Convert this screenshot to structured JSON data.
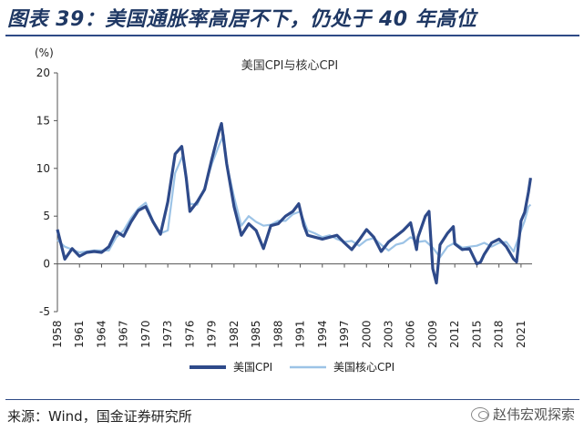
{
  "figure_title": "图表 39：美国通胀率高居不下，仍处于 40 年高位",
  "source": "来源：Wind，国金证券研究所",
  "watermark": "赵伟宏观探索",
  "chart_data": {
    "type": "line",
    "title": "美国CPI与核心CPI",
    "ylabel": "(%)",
    "xlabel": "",
    "ylim": [
      -5,
      20
    ],
    "yticks": [
      -5,
      0,
      5,
      10,
      15,
      20
    ],
    "xlim": [
      1958,
      2022.5
    ],
    "xticks": [
      1958,
      1961,
      1964,
      1967,
      1970,
      1973,
      1976,
      1979,
      1982,
      1985,
      1988,
      1991,
      1994,
      1997,
      2000,
      2003,
      2006,
      2009,
      2012,
      2015,
      2018,
      2021
    ],
    "legend_position": "bottom",
    "grid": false,
    "series": [
      {
        "name": "美国CPI",
        "color": "#2e4a8a",
        "points": [
          [
            1958,
            3.6
          ],
          [
            1959,
            0.5
          ],
          [
            1960,
            1.6
          ],
          [
            1961,
            0.8
          ],
          [
            1962,
            1.2
          ],
          [
            1963,
            1.3
          ],
          [
            1964,
            1.2
          ],
          [
            1965,
            1.8
          ],
          [
            1966,
            3.4
          ],
          [
            1967,
            2.9
          ],
          [
            1968,
            4.4
          ],
          [
            1969,
            5.6
          ],
          [
            1970,
            6.0
          ],
          [
            1971,
            4.4
          ],
          [
            1972,
            3.1
          ],
          [
            1973,
            6.5
          ],
          [
            1974,
            11.5
          ],
          [
            1974.9,
            12.3
          ],
          [
            1975.5,
            9.0
          ],
          [
            1976,
            5.5
          ],
          [
            1977,
            6.5
          ],
          [
            1978,
            7.8
          ],
          [
            1979,
            11.0
          ],
          [
            1980,
            14.0
          ],
          [
            1980.3,
            14.7
          ],
          [
            1981,
            10.5
          ],
          [
            1982,
            6.0
          ],
          [
            1983,
            3.0
          ],
          [
            1984,
            4.2
          ],
          [
            1985,
            3.5
          ],
          [
            1986,
            1.6
          ],
          [
            1987,
            4.0
          ],
          [
            1988,
            4.2
          ],
          [
            1989,
            5.0
          ],
          [
            1990,
            5.5
          ],
          [
            1990.8,
            6.3
          ],
          [
            1991.5,
            4.0
          ],
          [
            1992,
            3.0
          ],
          [
            1993,
            2.8
          ],
          [
            1994,
            2.6
          ],
          [
            1995,
            2.8
          ],
          [
            1996,
            3.0
          ],
          [
            1997,
            2.2
          ],
          [
            1998,
            1.5
          ],
          [
            1999,
            2.5
          ],
          [
            2000,
            3.6
          ],
          [
            2001,
            2.8
          ],
          [
            2002,
            1.3
          ],
          [
            2003,
            2.3
          ],
          [
            2004,
            2.9
          ],
          [
            2005,
            3.5
          ],
          [
            2006,
            4.3
          ],
          [
            2006.8,
            1.5
          ],
          [
            2007,
            2.8
          ],
          [
            2008,
            5.0
          ],
          [
            2008.5,
            5.5
          ],
          [
            2009,
            -0.5
          ],
          [
            2009.5,
            -2.0
          ],
          [
            2010,
            2.0
          ],
          [
            2011,
            3.2
          ],
          [
            2011.8,
            3.9
          ],
          [
            2012,
            2.1
          ],
          [
            2013,
            1.5
          ],
          [
            2014,
            1.6
          ],
          [
            2015,
            0.0
          ],
          [
            2015.5,
            0.2
          ],
          [
            2016,
            1.0
          ],
          [
            2017,
            2.2
          ],
          [
            2018,
            2.6
          ],
          [
            2019,
            1.8
          ],
          [
            2020,
            0.5
          ],
          [
            2020.4,
            0.2
          ],
          [
            2021,
            4.5
          ],
          [
            2021.5,
            5.4
          ],
          [
            2022,
            7.5
          ],
          [
            2022.3,
            9.0
          ]
        ]
      },
      {
        "name": "美国核心CPI",
        "color": "#9cc3e6",
        "points": [
          [
            1958,
            2.5
          ],
          [
            1959,
            1.8
          ],
          [
            1960,
            1.5
          ],
          [
            1961,
            1.2
          ],
          [
            1962,
            1.3
          ],
          [
            1963,
            1.4
          ],
          [
            1964,
            1.4
          ],
          [
            1965,
            1.4
          ],
          [
            1966,
            2.8
          ],
          [
            1967,
            3.5
          ],
          [
            1968,
            4.8
          ],
          [
            1969,
            5.8
          ],
          [
            1970,
            6.4
          ],
          [
            1971,
            4.5
          ],
          [
            1972,
            3.2
          ],
          [
            1973,
            3.5
          ],
          [
            1974,
            9.5
          ],
          [
            1975,
            11.3
          ],
          [
            1976,
            6.3
          ],
          [
            1977,
            6.2
          ],
          [
            1978,
            8.0
          ],
          [
            1979,
            10.5
          ],
          [
            1980,
            12.5
          ],
          [
            1980.6,
            13.5
          ],
          [
            1981,
            10.5
          ],
          [
            1982,
            7.0
          ],
          [
            1983,
            4.0
          ],
          [
            1984,
            5.0
          ],
          [
            1985,
            4.4
          ],
          [
            1986,
            4.0
          ],
          [
            1987,
            4.1
          ],
          [
            1988,
            4.5
          ],
          [
            1989,
            4.5
          ],
          [
            1990,
            5.2
          ],
          [
            1991,
            5.5
          ],
          [
            1992,
            3.5
          ],
          [
            1993,
            3.2
          ],
          [
            1994,
            2.8
          ],
          [
            1995,
            3.0
          ],
          [
            1996,
            2.6
          ],
          [
            1997,
            2.3
          ],
          [
            1998,
            2.4
          ],
          [
            1999,
            1.9
          ],
          [
            2000,
            2.5
          ],
          [
            2001,
            2.7
          ],
          [
            2002,
            2.0
          ],
          [
            2003,
            1.4
          ],
          [
            2004,
            2.0
          ],
          [
            2005,
            2.2
          ],
          [
            2006,
            2.8
          ],
          [
            2007,
            2.3
          ],
          [
            2008,
            2.4
          ],
          [
            2009,
            1.7
          ],
          [
            2010,
            0.7
          ],
          [
            2011,
            1.8
          ],
          [
            2012,
            2.2
          ],
          [
            2013,
            1.7
          ],
          [
            2014,
            1.8
          ],
          [
            2015,
            1.9
          ],
          [
            2016,
            2.2
          ],
          [
            2017,
            1.8
          ],
          [
            2018,
            2.2
          ],
          [
            2019,
            2.3
          ],
          [
            2020,
            1.3
          ],
          [
            2021,
            3.5
          ],
          [
            2021.5,
            4.5
          ],
          [
            2022,
            6.0
          ],
          [
            2022.3,
            6.2
          ]
        ]
      }
    ]
  }
}
